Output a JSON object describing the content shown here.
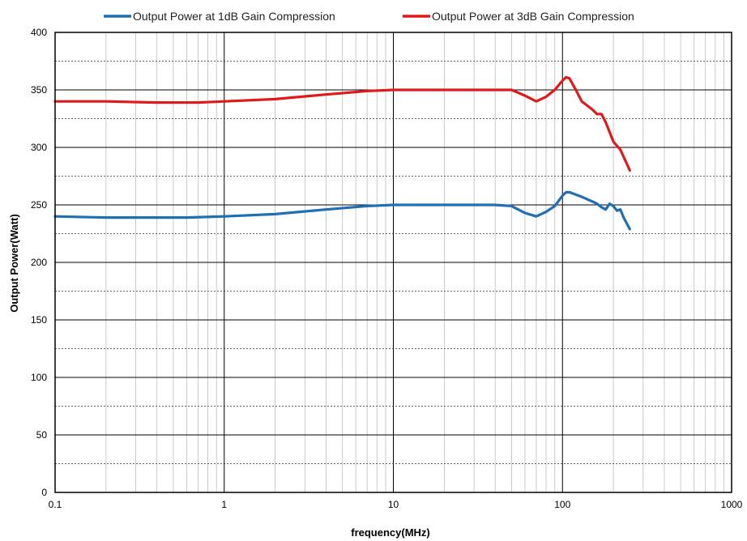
{
  "chart_data": {
    "type": "line",
    "xlabel": "frequency(MHz)",
    "ylabel": "Output Power(Watt)",
    "xscale": "log",
    "xlim": [
      0.1,
      1000
    ],
    "ylim": [
      0,
      400
    ],
    "x_ticks": [
      {
        "value": 0.1,
        "label": "0.1"
      },
      {
        "value": 1,
        "label": "1"
      },
      {
        "value": 10,
        "label": "10"
      },
      {
        "value": 100,
        "label": "100"
      },
      {
        "value": 1000,
        "label": "1000"
      }
    ],
    "y_ticks": [
      {
        "value": 0,
        "label": "0"
      },
      {
        "value": 50,
        "label": "50"
      },
      {
        "value": 100,
        "label": "100"
      },
      {
        "value": 150,
        "label": "150"
      },
      {
        "value": 200,
        "label": "200"
      },
      {
        "value": 250,
        "label": "250"
      },
      {
        "value": 300,
        "label": "300"
      },
      {
        "value": 350,
        "label": "350"
      },
      {
        "value": 400,
        "label": "400"
      }
    ],
    "y_minor_step": 25,
    "grid": true,
    "legend_position": "top",
    "series": [
      {
        "name": "Output Power at 1dB Gain Compression",
        "color": "#1f6fb4",
        "points": [
          [
            0.1,
            240
          ],
          [
            0.2,
            239
          ],
          [
            0.4,
            239
          ],
          [
            0.6,
            239
          ],
          [
            1,
            240
          ],
          [
            2,
            242
          ],
          [
            4,
            246
          ],
          [
            7,
            249
          ],
          [
            10,
            250
          ],
          [
            20,
            250
          ],
          [
            40,
            250
          ],
          [
            50,
            249
          ],
          [
            60,
            243
          ],
          [
            70,
            240
          ],
          [
            80,
            244
          ],
          [
            90,
            249
          ],
          [
            100,
            258
          ],
          [
            105,
            261
          ],
          [
            110,
            261
          ],
          [
            130,
            257
          ],
          [
            150,
            253
          ],
          [
            160,
            251
          ],
          [
            170,
            248
          ],
          [
            180,
            246
          ],
          [
            190,
            251
          ],
          [
            200,
            249
          ],
          [
            210,
            245
          ],
          [
            220,
            246
          ],
          [
            230,
            239
          ],
          [
            250,
            229
          ]
        ]
      },
      {
        "name": "Output Power at 3dB Gain Compression",
        "color": "#e0191b",
        "points": [
          [
            0.1,
            340
          ],
          [
            0.2,
            340
          ],
          [
            0.4,
            339
          ],
          [
            0.7,
            339
          ],
          [
            1,
            340
          ],
          [
            2,
            342
          ],
          [
            4,
            346
          ],
          [
            7,
            349
          ],
          [
            10,
            350
          ],
          [
            14,
            350
          ],
          [
            20,
            350
          ],
          [
            40,
            350
          ],
          [
            50,
            350
          ],
          [
            60,
            345
          ],
          [
            70,
            340
          ],
          [
            80,
            344
          ],
          [
            90,
            350
          ],
          [
            100,
            358
          ],
          [
            105,
            361
          ],
          [
            110,
            360
          ],
          [
            120,
            350
          ],
          [
            130,
            340
          ],
          [
            150,
            333
          ],
          [
            160,
            329
          ],
          [
            170,
            329
          ],
          [
            180,
            322
          ],
          [
            200,
            305
          ],
          [
            220,
            298
          ],
          [
            250,
            280
          ]
        ]
      }
    ]
  }
}
